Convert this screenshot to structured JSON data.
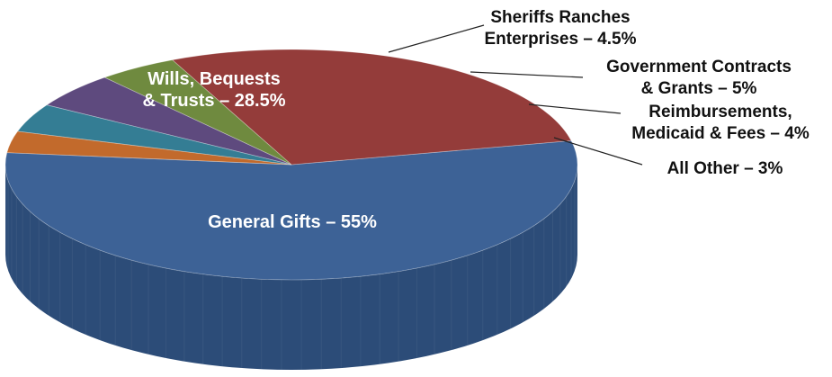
{
  "chart_data": {
    "type": "pie",
    "style": "3d",
    "slices": [
      {
        "label": "General Gifts – 55%",
        "value": 55,
        "color": "#3d6296",
        "side_color": "#2c4c78",
        "label_lines": [
          "General Gifts – 55%"
        ]
      },
      {
        "label": "Wills, Bequests & Trusts – 28.5%",
        "value": 28.5,
        "color": "#943c3a",
        "side_color": "#6e2b2a",
        "label_lines": [
          "Wills, Bequests",
          "& Trusts – 28.5%"
        ]
      },
      {
        "label": "Sheriffs Ranches Enterprises – 4.5%",
        "value": 4.5,
        "color": "#6f8a3f",
        "side_color": "#536a2e",
        "label_lines": [
          "Sheriffs Ranches",
          "Enterprises – 4.5%"
        ]
      },
      {
        "label": "Government Contracts & Grants – 5%",
        "value": 5,
        "color": "#5e4a7e",
        "side_color": "#45365e",
        "label_lines": [
          "Government Contracts",
          "& Grants – 5%"
        ]
      },
      {
        "label": "Reimbursements, Medicaid & Fees – 4%",
        "value": 4,
        "color": "#347d94",
        "side_color": "#255c6e",
        "label_lines": [
          "Reimbursements,",
          "Medicaid & Fees – 4%"
        ]
      },
      {
        "label": "All Other – 3%",
        "value": 3,
        "color": "#c26a2c",
        "side_color": "#92501f",
        "label_lines": [
          "All Other – 3%"
        ]
      }
    ]
  }
}
